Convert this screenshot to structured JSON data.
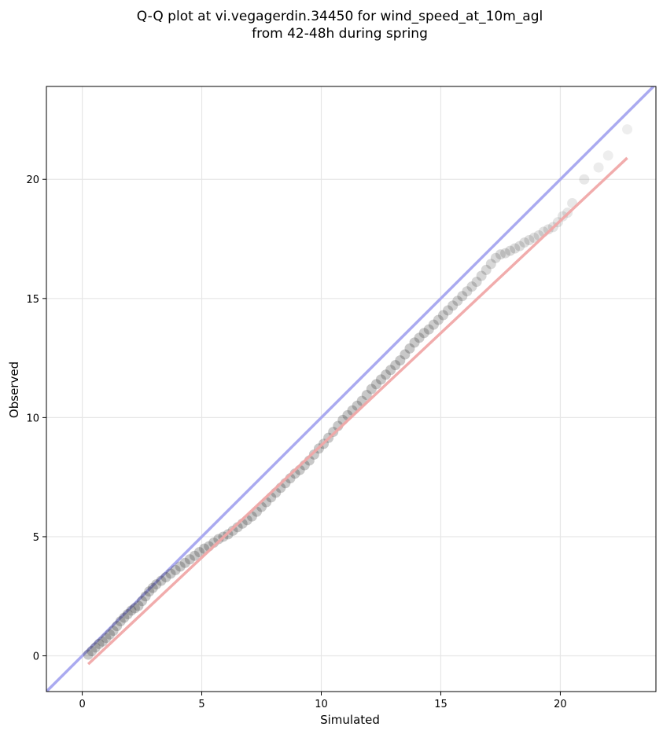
{
  "chart_data": {
    "type": "scatter",
    "title_lines": [
      "Q-Q plot at vi.vegagerdin.34450 for wind_speed_at_10m_agl",
      "from 42-48h during spring"
    ],
    "xlabel": "Simulated",
    "ylabel": "Observed",
    "xlim": [
      -1.5,
      24.0
    ],
    "ylim": [
      -1.5,
      23.9
    ],
    "xticks": [
      0,
      5,
      10,
      15,
      20
    ],
    "yticks": [
      0,
      5,
      10,
      15,
      20
    ],
    "grid": true,
    "identity_line": {
      "name": "",
      "color": "#aaaaf0"
    },
    "fit_line": {
      "name": "",
      "color": "#f0a8a8",
      "x": [
        0.25,
        22.8
      ],
      "y": [
        -0.35,
        20.9
      ]
    },
    "marker_color": "#222222",
    "series": [
      {
        "name": "",
        "x": [
          0.25,
          0.4,
          0.55,
          0.7,
          0.85,
          1.0,
          1.15,
          1.3,
          1.45,
          1.6,
          1.75,
          1.9,
          2.05,
          2.2,
          2.35,
          2.5,
          2.65,
          2.8,
          2.95,
          3.1,
          3.3,
          3.5,
          3.7,
          3.9,
          4.1,
          4.3,
          4.5,
          4.7,
          4.9,
          5.1,
          5.3,
          5.5,
          5.7,
          5.9,
          6.1,
          6.3,
          6.5,
          6.7,
          6.9,
          7.1,
          7.3,
          7.5,
          7.7,
          7.9,
          8.1,
          8.3,
          8.5,
          8.7,
          8.9,
          9.1,
          9.3,
          9.5,
          9.7,
          9.9,
          10.1,
          10.3,
          10.5,
          10.7,
          10.9,
          11.1,
          11.3,
          11.5,
          11.7,
          11.9,
          12.1,
          12.3,
          12.5,
          12.7,
          12.9,
          13.1,
          13.3,
          13.5,
          13.7,
          13.9,
          14.1,
          14.3,
          14.5,
          14.7,
          14.9,
          15.1,
          15.3,
          15.5,
          15.7,
          15.9,
          16.1,
          16.3,
          16.5,
          16.7,
          16.9,
          17.1,
          17.3,
          17.5,
          17.7,
          17.9,
          18.1,
          18.3,
          18.5,
          18.7,
          18.9,
          19.1,
          19.3,
          19.5,
          19.7,
          19.9,
          20.1,
          20.3,
          20.5,
          21.0,
          21.6,
          22.0,
          22.8
        ],
        "y": [
          0.05,
          0.2,
          0.35,
          0.5,
          0.6,
          0.75,
          0.9,
          1.05,
          1.25,
          1.45,
          1.6,
          1.75,
          1.9,
          2.0,
          2.1,
          2.3,
          2.5,
          2.7,
          2.85,
          3.0,
          3.15,
          3.3,
          3.45,
          3.6,
          3.75,
          3.9,
          4.05,
          4.2,
          4.35,
          4.5,
          4.6,
          4.75,
          4.9,
          5.0,
          5.1,
          5.25,
          5.4,
          5.55,
          5.7,
          5.85,
          6.05,
          6.25,
          6.45,
          6.65,
          6.85,
          7.05,
          7.25,
          7.45,
          7.65,
          7.8,
          8.0,
          8.2,
          8.45,
          8.7,
          8.9,
          9.15,
          9.4,
          9.65,
          9.9,
          10.1,
          10.3,
          10.5,
          10.7,
          10.95,
          11.2,
          11.4,
          11.6,
          11.8,
          12.0,
          12.2,
          12.4,
          12.65,
          12.9,
          13.15,
          13.35,
          13.55,
          13.7,
          13.9,
          14.1,
          14.3,
          14.5,
          14.7,
          14.9,
          15.1,
          15.3,
          15.5,
          15.7,
          15.95,
          16.2,
          16.45,
          16.7,
          16.85,
          16.9,
          17.0,
          17.1,
          17.2,
          17.35,
          17.45,
          17.55,
          17.65,
          17.8,
          17.9,
          18.0,
          18.2,
          18.45,
          18.6,
          19.0,
          20.0,
          20.5,
          21.0,
          22.1
        ]
      }
    ]
  }
}
